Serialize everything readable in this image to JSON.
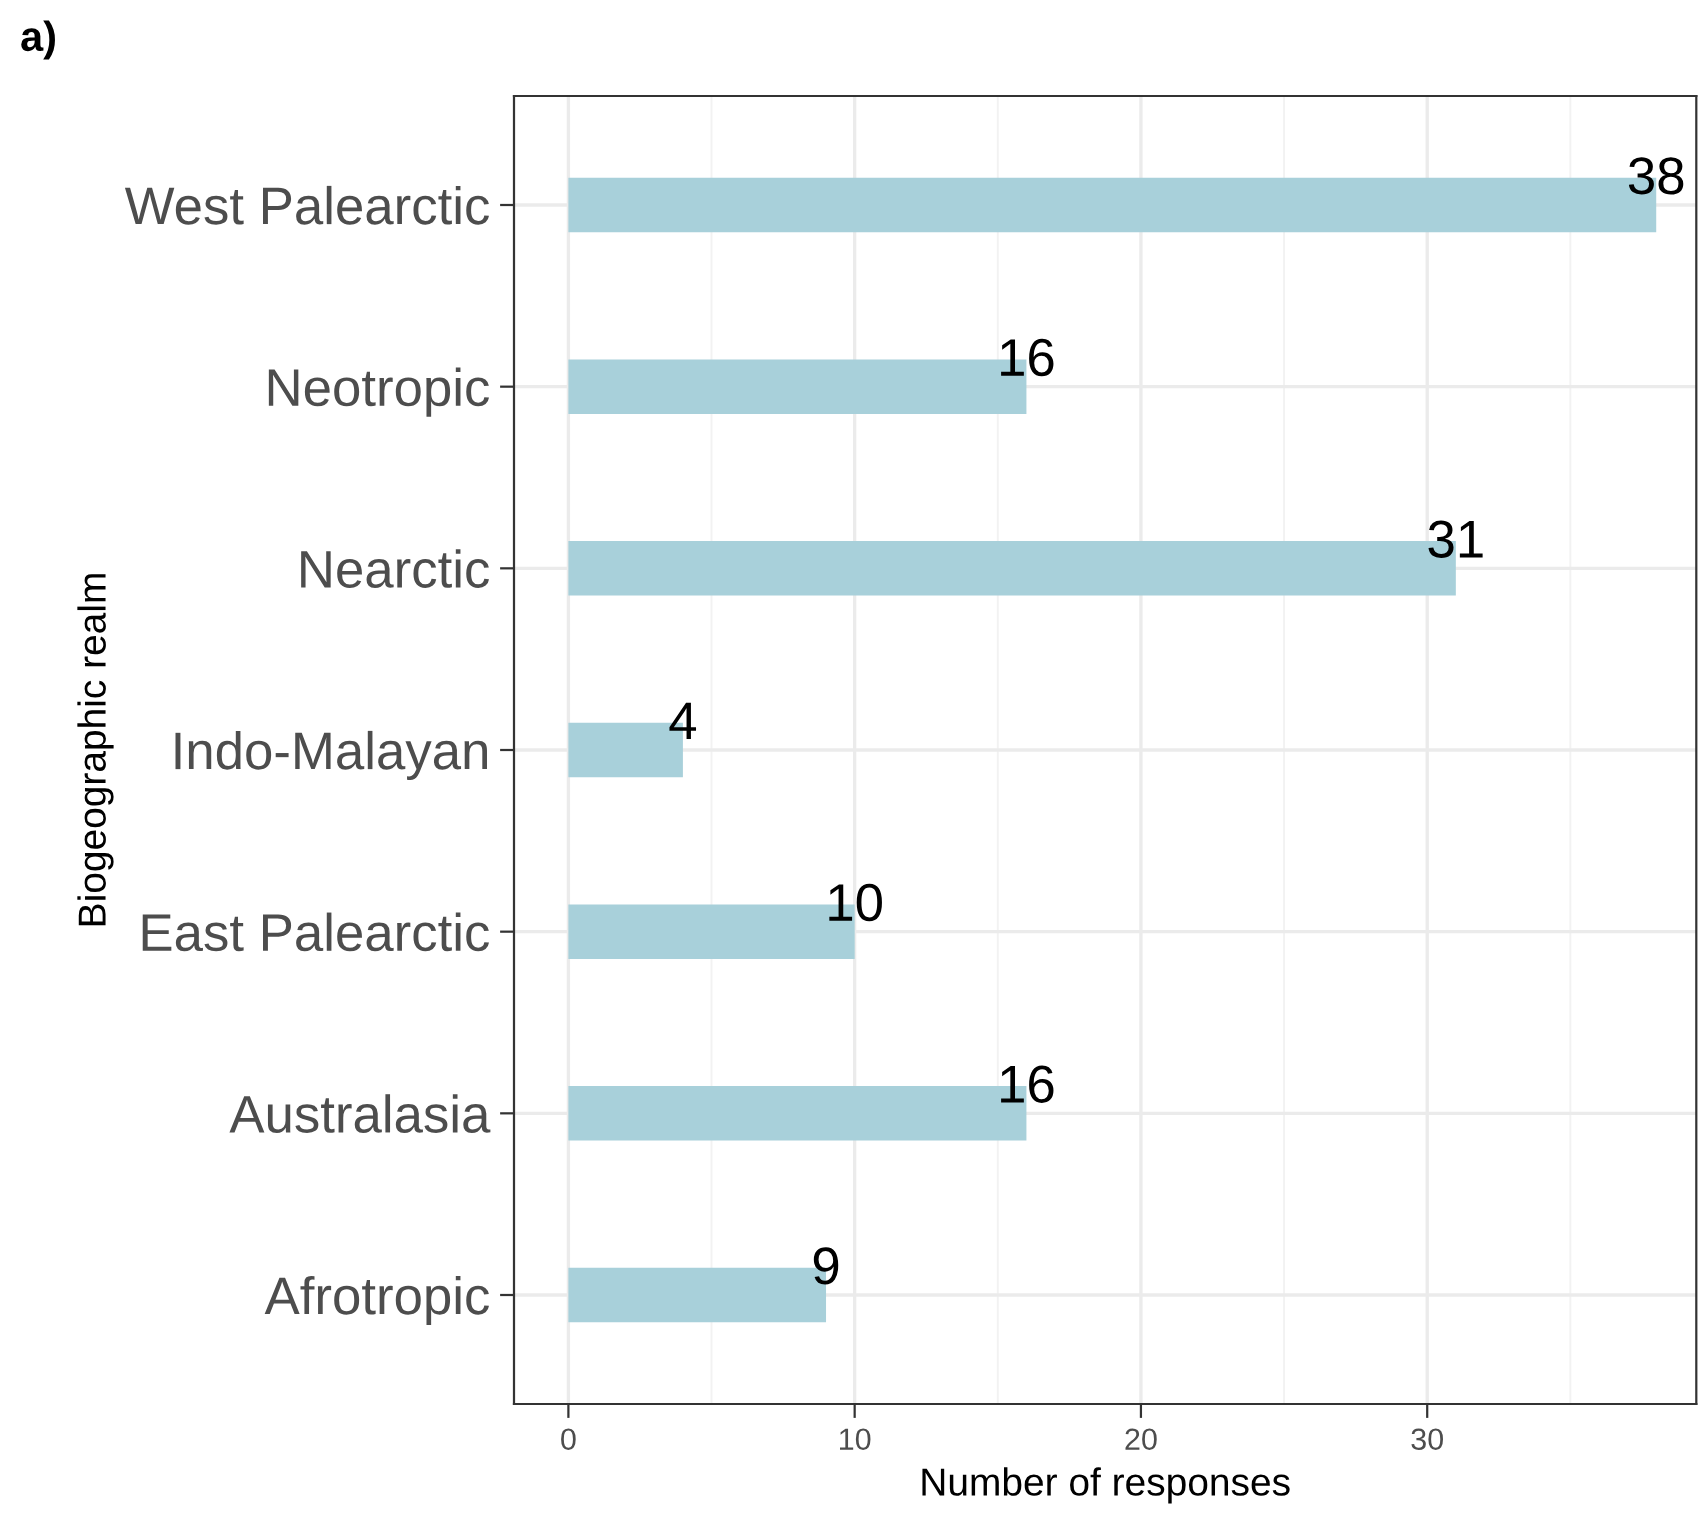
{
  "chart_data": {
    "type": "bar",
    "orientation": "horizontal",
    "title": "a)",
    "xlabel": "Number of responses",
    "ylabel": "Biogeographic realm",
    "categories": [
      "West Palearctic",
      "Neotropic",
      "Nearctic",
      "Indo-Malayan",
      "East Palearctic",
      "Australasia",
      "Afrotropic"
    ],
    "values": [
      38,
      16,
      31,
      4,
      10,
      16,
      9
    ],
    "color": "#a8d0da",
    "xlim": [
      -1.9,
      39.4
    ],
    "xticks": [
      0,
      10,
      20,
      30
    ],
    "grid": true,
    "data_labels": true
  }
}
